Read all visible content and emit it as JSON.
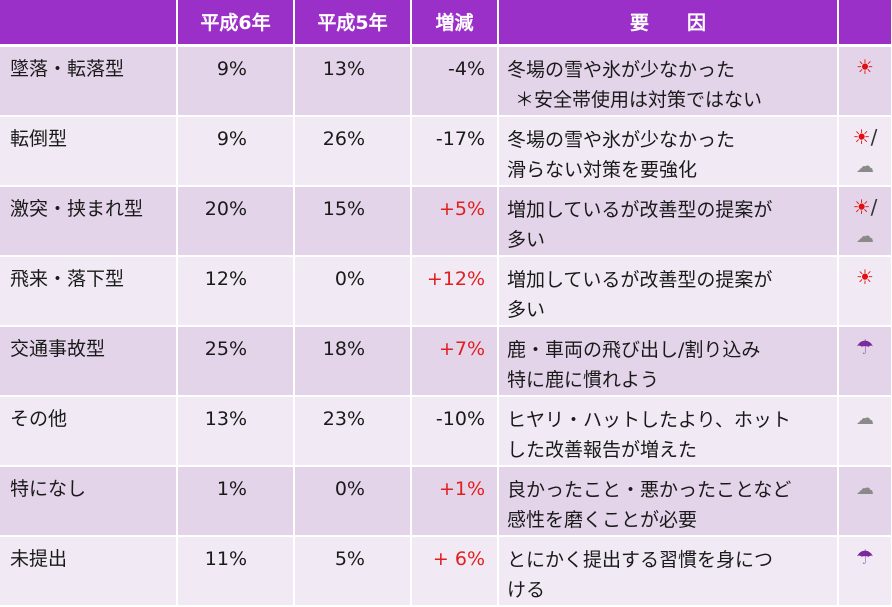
{
  "headers": [
    "",
    "平成6年",
    "平成5年",
    "増減",
    "要　　因",
    ""
  ],
  "colors": {
    "header_bg": "#9b30c8",
    "row_dark": "#e4d4ea",
    "row_light": "#f1eaf5",
    "positive_delta": "#e02020"
  },
  "rows": [
    {
      "label": "墜落・転落型",
      "h6": "9%",
      "h5": "13%",
      "delta": "-4%",
      "delta_color": "black",
      "reason1": "冬場の雪や氷が少なかった",
      "reason2": "＊安全帯使用は対策ではない",
      "icons": [
        "sun-icon"
      ],
      "sun": "☀",
      "sep": "/",
      "cloud": "☁"
    },
    {
      "label": "転倒型",
      "h6": "9%",
      "h5": "26%",
      "delta": "-17%",
      "delta_color": "black",
      "reason1": "冬場の雪や氷が少なかった",
      "reason2": "滑らない対策を要強化",
      "icons": [
        "sun-icon",
        "cloud-icon"
      ],
      "sun": "☀",
      "sep": "/",
      "cloud": "☁"
    },
    {
      "label": "激突・挟まれ型",
      "h6": "20%",
      "h5": "15%",
      "delta": "+5%",
      "delta_color": "red",
      "reason1": "増加しているが改善型の提案が",
      "reason2": "多い",
      "icons": [
        "sun-icon",
        "cloud-icon"
      ],
      "sun": "☀",
      "sep": "/",
      "cloud": "☁"
    },
    {
      "label": "飛来・落下型",
      "h6": "12%",
      "h5": "0%",
      "delta": "+12%",
      "delta_color": "red",
      "reason1": "増加しているが改善型の提案が",
      "reason2": "多い",
      "icons": [
        "sun-icon"
      ],
      "sun": "☀"
    },
    {
      "label": "交通事故型",
      "h6": "25%",
      "h5": "18%",
      "delta": "+7%",
      "delta_color": "red",
      "reason1": "鹿・車両の飛び出し/割り込み",
      "reason2": "特に鹿に慣れよう",
      "icons": [
        "umbrella-icon"
      ],
      "umbrella": "☂"
    },
    {
      "label": "その他",
      "h6": "13%",
      "h5": "23%",
      "delta": "-10%",
      "delta_color": "black",
      "reason1": "ヒヤリ・ハットしたより、ホット",
      "reason2": "した改善報告が増えた",
      "icons": [
        "cloud-icon"
      ],
      "cloud": "☁"
    },
    {
      "label": "特になし",
      "h6": "1%",
      "h5": "0%",
      "delta": "+1%",
      "delta_color": "red",
      "reason1": "良かったこと・悪かったことなど",
      "reason2": "感性を磨くことが必要",
      "icons": [
        "cloud-icon"
      ],
      "cloud": "☁"
    },
    {
      "label": "未提出",
      "h6": "11%",
      "h5": "5%",
      "delta": "+ 6%",
      "delta_color": "red",
      "reason1": "とにかく提出する習慣を身につ",
      "reason2": "ける",
      "icons": [
        "umbrella-icon"
      ],
      "umbrella": "☂"
    }
  ]
}
